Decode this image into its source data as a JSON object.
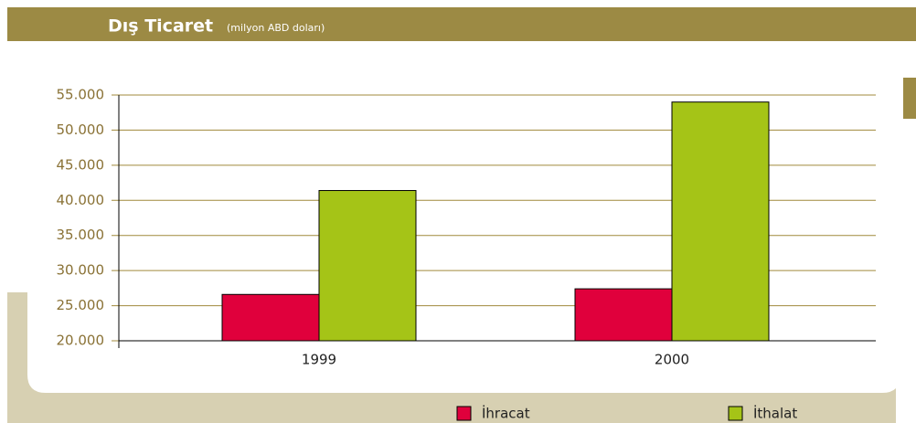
{
  "chart_data": {
    "type": "bar",
    "title": "Dış Ticaret",
    "subtitle": "(milyon ABD doları)",
    "categories": [
      "1999",
      "2000"
    ],
    "series": [
      {
        "name": "İhracat",
        "color": "#e0003c",
        "values": [
          26600,
          27400
        ]
      },
      {
        "name": "İthalat",
        "color": "#a5c417",
        "values": [
          41400,
          54000
        ]
      }
    ],
    "ylim": [
      20000,
      55000
    ],
    "yticks": [
      {
        "value": 20000,
        "label": "20.000"
      },
      {
        "value": 25000,
        "label": "25.000"
      },
      {
        "value": 30000,
        "label": "30.000"
      },
      {
        "value": 35000,
        "label": "35.000"
      },
      {
        "value": 40000,
        "label": "40.000"
      },
      {
        "value": 45000,
        "label": "45.000"
      },
      {
        "value": 50000,
        "label": "50.000"
      },
      {
        "value": 55000,
        "label": "55.000"
      }
    ],
    "grid": true,
    "legend": "bottom"
  }
}
